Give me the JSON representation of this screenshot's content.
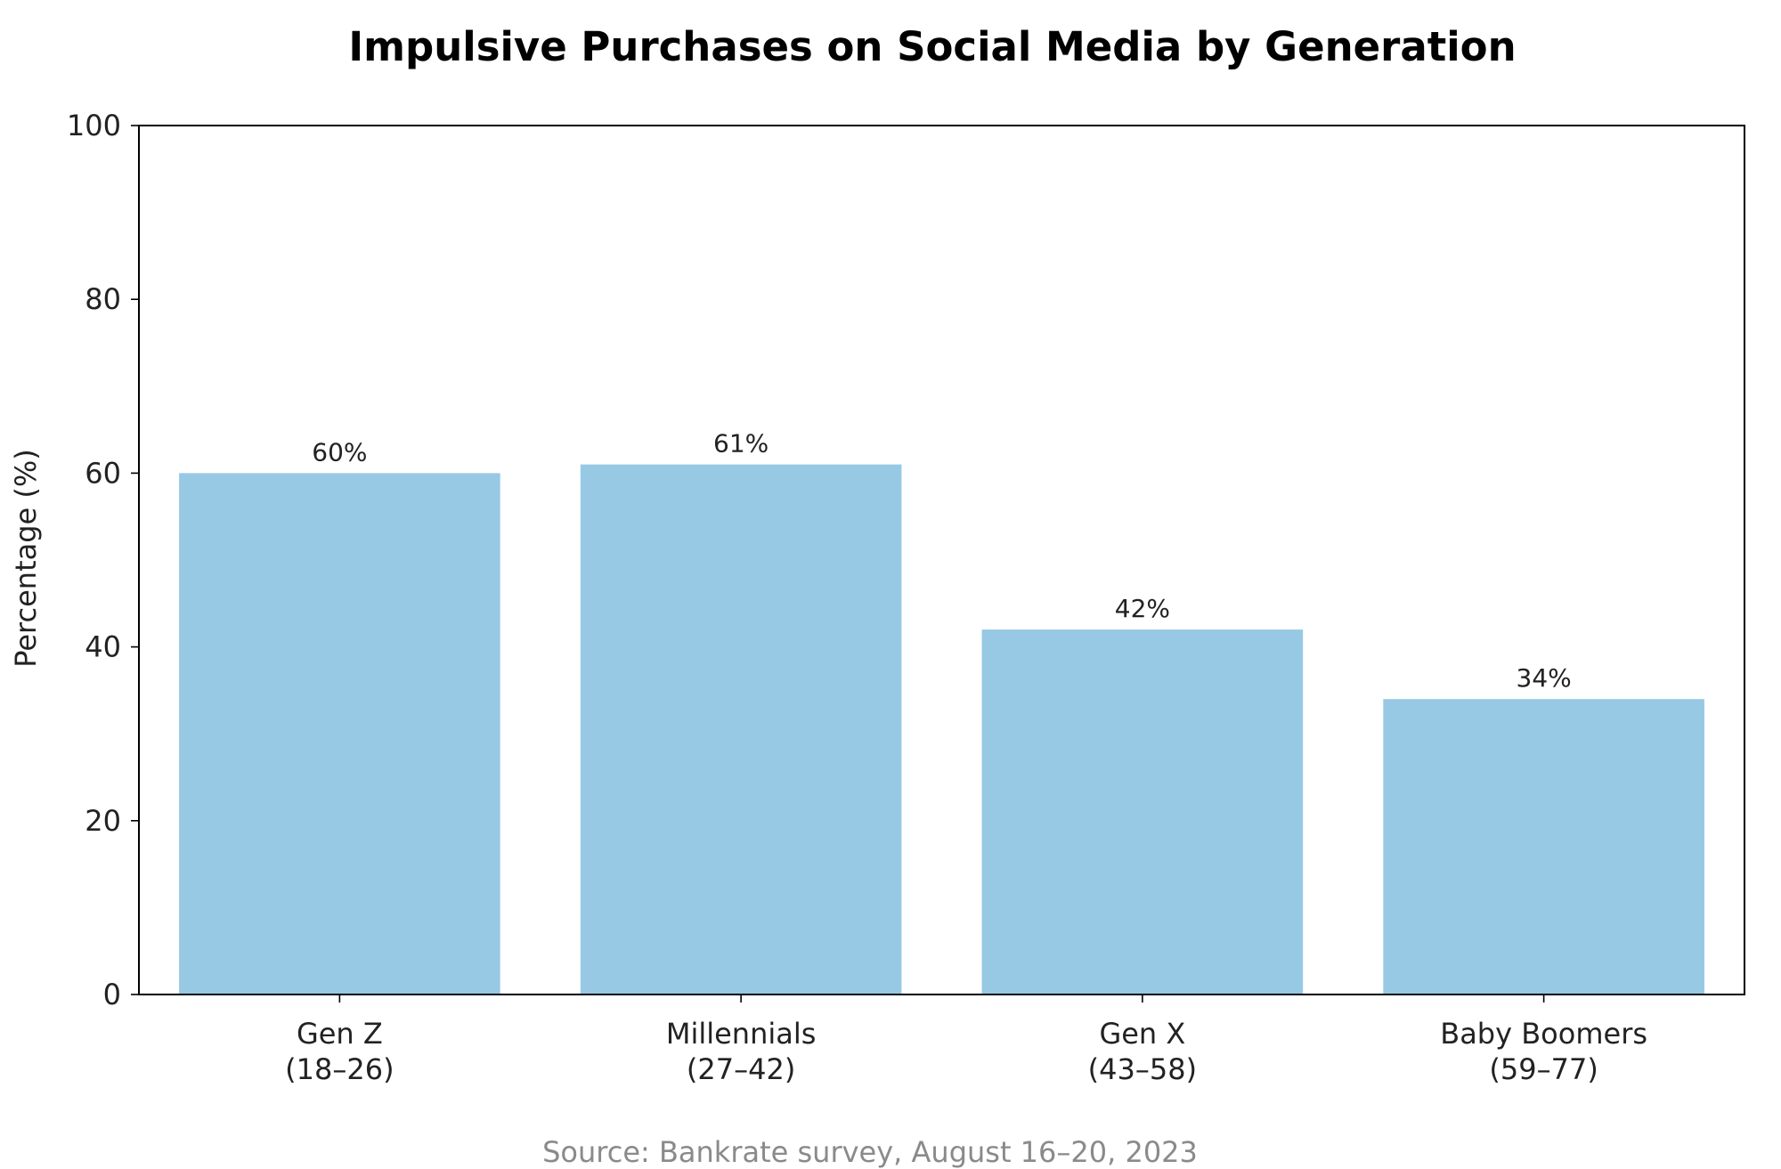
{
  "chart_data": {
    "type": "bar",
    "title": "Impulsive Purchases on Social Media by Generation",
    "ylabel": "Percentage (%)",
    "xlabel": "",
    "categories": [
      [
        "Gen Z",
        "(18–26)"
      ],
      [
        "Millennials",
        "(27–42)"
      ],
      [
        "Gen X",
        "(43–58)"
      ],
      [
        "Baby Boomers",
        "(59–77)"
      ]
    ],
    "values": [
      60,
      61,
      42,
      34
    ],
    "value_labels": [
      "60%",
      "61%",
      "42%",
      "34%"
    ],
    "ylim": [
      0,
      100
    ],
    "yticks": [
      0,
      20,
      40,
      60,
      80,
      100
    ],
    "bar_color": "#97c9e5",
    "grid": false,
    "legend": "none"
  },
  "source": "Source: Bankrate survey, August 16–20, 2023"
}
